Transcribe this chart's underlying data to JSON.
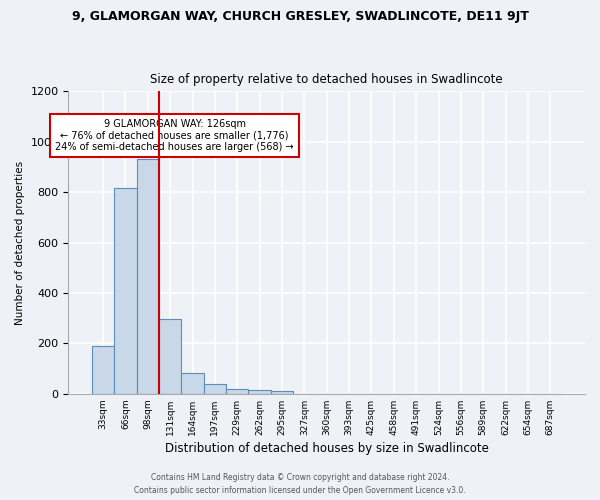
{
  "title_line1": "9, GLAMORGAN WAY, CHURCH GRESLEY, SWADLINCOTE, DE11 9JT",
  "title_line2": "Size of property relative to detached houses in Swadlincote",
  "xlabel": "Distribution of detached houses by size in Swadlincote",
  "ylabel": "Number of detached properties",
  "bar_labels": [
    "33sqm",
    "66sqm",
    "98sqm",
    "131sqm",
    "164sqm",
    "197sqm",
    "229sqm",
    "262sqm",
    "295sqm",
    "327sqm",
    "360sqm",
    "393sqm",
    "425sqm",
    "458sqm",
    "491sqm",
    "524sqm",
    "556sqm",
    "589sqm",
    "622sqm",
    "654sqm",
    "687sqm"
  ],
  "bar_values": [
    190,
    815,
    930,
    295,
    82,
    38,
    18,
    15,
    10,
    0,
    0,
    0,
    0,
    0,
    0,
    0,
    0,
    0,
    0,
    0,
    0
  ],
  "bar_color": "#c8d8e8",
  "bar_edge_color": "#5b8db8",
  "vline_color": "#cc0000",
  "annotation_text": "9 GLAMORGAN WAY: 126sqm\n← 76% of detached houses are smaller (1,776)\n24% of semi-detached houses are larger (568) →",
  "annotation_box_color": "white",
  "annotation_box_edge": "#cc0000",
  "ylim": [
    0,
    1200
  ],
  "yticks": [
    0,
    200,
    400,
    600,
    800,
    1000,
    1200
  ],
  "footnote1": "Contains HM Land Registry data © Crown copyright and database right 2024.",
  "footnote2": "Contains public sector information licensed under the Open Government Licence v3.0.",
  "bg_color": "#eef2f7",
  "grid_color": "#ffffff"
}
